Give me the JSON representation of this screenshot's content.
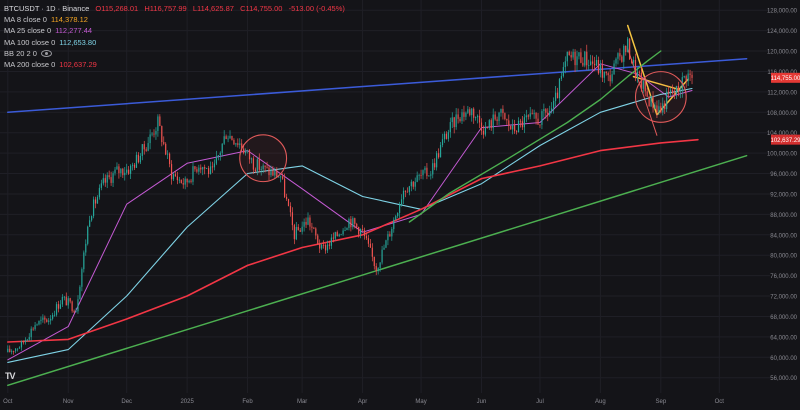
{
  "header": {
    "symbol": "BTCUSDT · 1D · Binance",
    "open": "O115,268.01",
    "high": "H116,757.99",
    "low": "L114,625.87",
    "close": "C114,755.00",
    "change": "-513.00 (-0.45%)"
  },
  "indicators": [
    {
      "label": "MA 8 close 0",
      "value": "114,378.12",
      "color": "#f5a623"
    },
    {
      "label": "MA 25 close 0",
      "value": "112,277.44",
      "color": "#c45ad3"
    },
    {
      "label": "MA 100 close 0",
      "value": "112,653.80",
      "color": "#7fd3e6"
    },
    {
      "label": "BB 20 2 0",
      "value": "",
      "color": "#c8c8cc"
    },
    {
      "label": "MA 200 close 0",
      "value": "102,637.29",
      "color": "#f23645"
    }
  ],
  "colors": {
    "background": "#141418",
    "grid": "#1f1f26",
    "up": "#26a69a",
    "down": "#ef5350",
    "ma8": "#f5a623",
    "ma25": "#c45ad3",
    "ma100": "#7fd3e6",
    "ma200": "#f23645",
    "ma50": "#4caf50",
    "resistance": "#3b5bd9",
    "support": "#4caf50",
    "wedge": "#f5c542",
    "circle": "#e05a5a",
    "price_badge": "#e53935"
  },
  "chart_data": {
    "type": "candlestick",
    "x_tick_labels": [
      "Oct",
      "Nov",
      "Dec",
      "2025",
      "Feb",
      "Mar",
      "Apr",
      "May",
      "Jun",
      "Jul",
      "Aug",
      "Sep",
      "Oct"
    ],
    "y_tick_labels": [
      "56,000.00",
      "60,000.00",
      "64,000.00",
      "68,000.00",
      "72,000.00",
      "76,000.00",
      "80,000.00",
      "84,000.00",
      "88,000.00",
      "92,000.00",
      "96,000.00",
      "100,000.00",
      "104,000.00",
      "108,000.00",
      "112,000.00",
      "116,000.00",
      "120,000.00",
      "124,000.00",
      "128,000.00"
    ],
    "y_ticks": [
      56000,
      60000,
      64000,
      68000,
      72000,
      76000,
      80000,
      84000,
      88000,
      92000,
      96000,
      100000,
      104000,
      108000,
      112000,
      116000,
      120000,
      124000,
      128000
    ],
    "ylim": [
      53000,
      130000
    ],
    "last_price": 114755,
    "last_price_label": "114,755.00",
    "ma200_value": 102637.29,
    "ma200_label": "102,637.29",
    "price_path": [
      [
        "2024-10-01",
        61000
      ],
      [
        "2024-10-08",
        62500
      ],
      [
        "2024-10-15",
        66500
      ],
      [
        "2024-10-22",
        67500
      ],
      [
        "2024-10-29",
        71500
      ],
      [
        "2024-11-05",
        69500
      ],
      [
        "2024-11-12",
        88000
      ],
      [
        "2024-11-19",
        94000
      ],
      [
        "2024-11-26",
        96500
      ],
      [
        "2024-12-03",
        97000
      ],
      [
        "2024-12-10",
        101000
      ],
      [
        "2024-12-17",
        106000
      ],
      [
        "2024-12-24",
        96000
      ],
      [
        "2024-12-31",
        94000
      ],
      [
        "2025-01-07",
        98000
      ],
      [
        "2025-01-14",
        96000
      ],
      [
        "2025-01-21",
        104000
      ],
      [
        "2025-01-28",
        102000
      ],
      [
        "2025-02-04",
        98000
      ],
      [
        "2025-02-11",
        96500
      ],
      [
        "2025-02-18",
        95500
      ],
      [
        "2025-02-25",
        84000
      ],
      [
        "2025-03-04",
        87000
      ],
      [
        "2025-03-11",
        81000
      ],
      [
        "2025-03-18",
        83500
      ],
      [
        "2025-03-25",
        87000
      ],
      [
        "2025-04-01",
        84500
      ],
      [
        "2025-04-08",
        77500
      ],
      [
        "2025-04-15",
        84500
      ],
      [
        "2025-04-22",
        93000
      ],
      [
        "2025-04-29",
        95000
      ],
      [
        "2025-05-06",
        96500
      ],
      [
        "2025-05-13",
        103000
      ],
      [
        "2025-05-20",
        107500
      ],
      [
        "2025-05-27",
        108500
      ],
      [
        "2025-06-03",
        104500
      ],
      [
        "2025-06-10",
        108000
      ],
      [
        "2025-06-17",
        104500
      ],
      [
        "2025-06-24",
        106500
      ],
      [
        "2025-07-01",
        106500
      ],
      [
        "2025-07-08",
        109000
      ],
      [
        "2025-07-15",
        118500
      ],
      [
        "2025-07-22",
        119000
      ],
      [
        "2025-07-29",
        117500
      ],
      [
        "2025-08-05",
        114500
      ],
      [
        "2025-08-12",
        119500
      ],
      [
        "2025-08-15",
        121000
      ],
      [
        "2025-08-19",
        116000
      ],
      [
        "2025-08-26",
        110500
      ],
      [
        "2025-09-01",
        108500
      ],
      [
        "2025-09-05",
        111500
      ],
      [
        "2025-09-09",
        112000
      ],
      [
        "2025-09-14",
        115500
      ],
      [
        "2025-09-17",
        114755
      ]
    ],
    "ma25_path": [
      [
        "2024-10-01",
        59500
      ],
      [
        "2024-11-01",
        66000
      ],
      [
        "2024-12-01",
        90000
      ],
      [
        "2025-01-01",
        98000
      ],
      [
        "2025-02-01",
        100500
      ],
      [
        "2025-03-01",
        93000
      ],
      [
        "2025-04-01",
        84500
      ],
      [
        "2025-05-01",
        88000
      ],
      [
        "2025-06-01",
        105000
      ],
      [
        "2025-07-01",
        106000
      ],
      [
        "2025-08-01",
        117500
      ],
      [
        "2025-08-20",
        115500
      ],
      [
        "2025-09-05",
        111000
      ],
      [
        "2025-09-17",
        112277
      ]
    ],
    "ma100_path": [
      [
        "2024-10-01",
        59000
      ],
      [
        "2024-11-01",
        61500
      ],
      [
        "2024-12-01",
        72000
      ],
      [
        "2025-01-01",
        85500
      ],
      [
        "2025-02-01",
        96000
      ],
      [
        "2025-03-01",
        97500
      ],
      [
        "2025-04-01",
        91500
      ],
      [
        "2025-05-01",
        89000
      ],
      [
        "2025-06-01",
        94000
      ],
      [
        "2025-07-01",
        101500
      ],
      [
        "2025-08-01",
        108000
      ],
      [
        "2025-09-01",
        111500
      ],
      [
        "2025-09-17",
        112654
      ]
    ],
    "ma200_path": [
      [
        "2024-10-01",
        63000
      ],
      [
        "2024-11-01",
        63500
      ],
      [
        "2024-12-01",
        67500
      ],
      [
        "2025-01-01",
        72000
      ],
      [
        "2025-02-01",
        78000
      ],
      [
        "2025-03-01",
        81500
      ],
      [
        "2025-04-01",
        84000
      ],
      [
        "2025-05-01",
        89000
      ],
      [
        "2025-06-01",
        95000
      ],
      [
        "2025-07-01",
        97500
      ],
      [
        "2025-08-01",
        100500
      ],
      [
        "2025-09-01",
        102000
      ],
      [
        "2025-09-20",
        102637
      ]
    ],
    "ma50_path": [
      [
        "2025-04-25",
        86500
      ],
      [
        "2025-05-15",
        92000
      ],
      [
        "2025-06-15",
        99000
      ],
      [
        "2025-07-15",
        106000
      ],
      [
        "2025-08-01",
        110500
      ],
      [
        "2025-08-15",
        115000
      ],
      [
        "2025-08-25",
        118000
      ],
      [
        "2025-09-01",
        120000
      ]
    ],
    "trendlines": [
      {
        "role": "resistance",
        "points": [
          [
            "2024-10-01",
            108000
          ],
          [
            "2025-10-15",
            118500
          ]
        ]
      },
      {
        "role": "support",
        "points": [
          [
            "2024-10-01",
            54500
          ],
          [
            "2025-10-15",
            99500
          ]
        ]
      },
      {
        "role": "wedge",
        "points": [
          [
            "2025-08-15",
            125000
          ],
          [
            "2025-08-30",
            107500
          ],
          [
            "2025-09-15",
            114500
          ]
        ]
      },
      {
        "role": "wedge",
        "points": [
          [
            "2025-08-18",
            115000
          ],
          [
            "2025-09-10",
            112500
          ]
        ]
      },
      {
        "role": "trend-down",
        "points": [
          [
            "2025-08-15",
            120500
          ],
          [
            "2025-08-30",
            103500
          ]
        ]
      }
    ],
    "highlight_circles": [
      {
        "center": [
          "2025-02-09",
          99000
        ],
        "radius_days": 12
      },
      {
        "center": [
          "2025-09-01",
          111000
        ],
        "radius_days": 13
      }
    ]
  }
}
